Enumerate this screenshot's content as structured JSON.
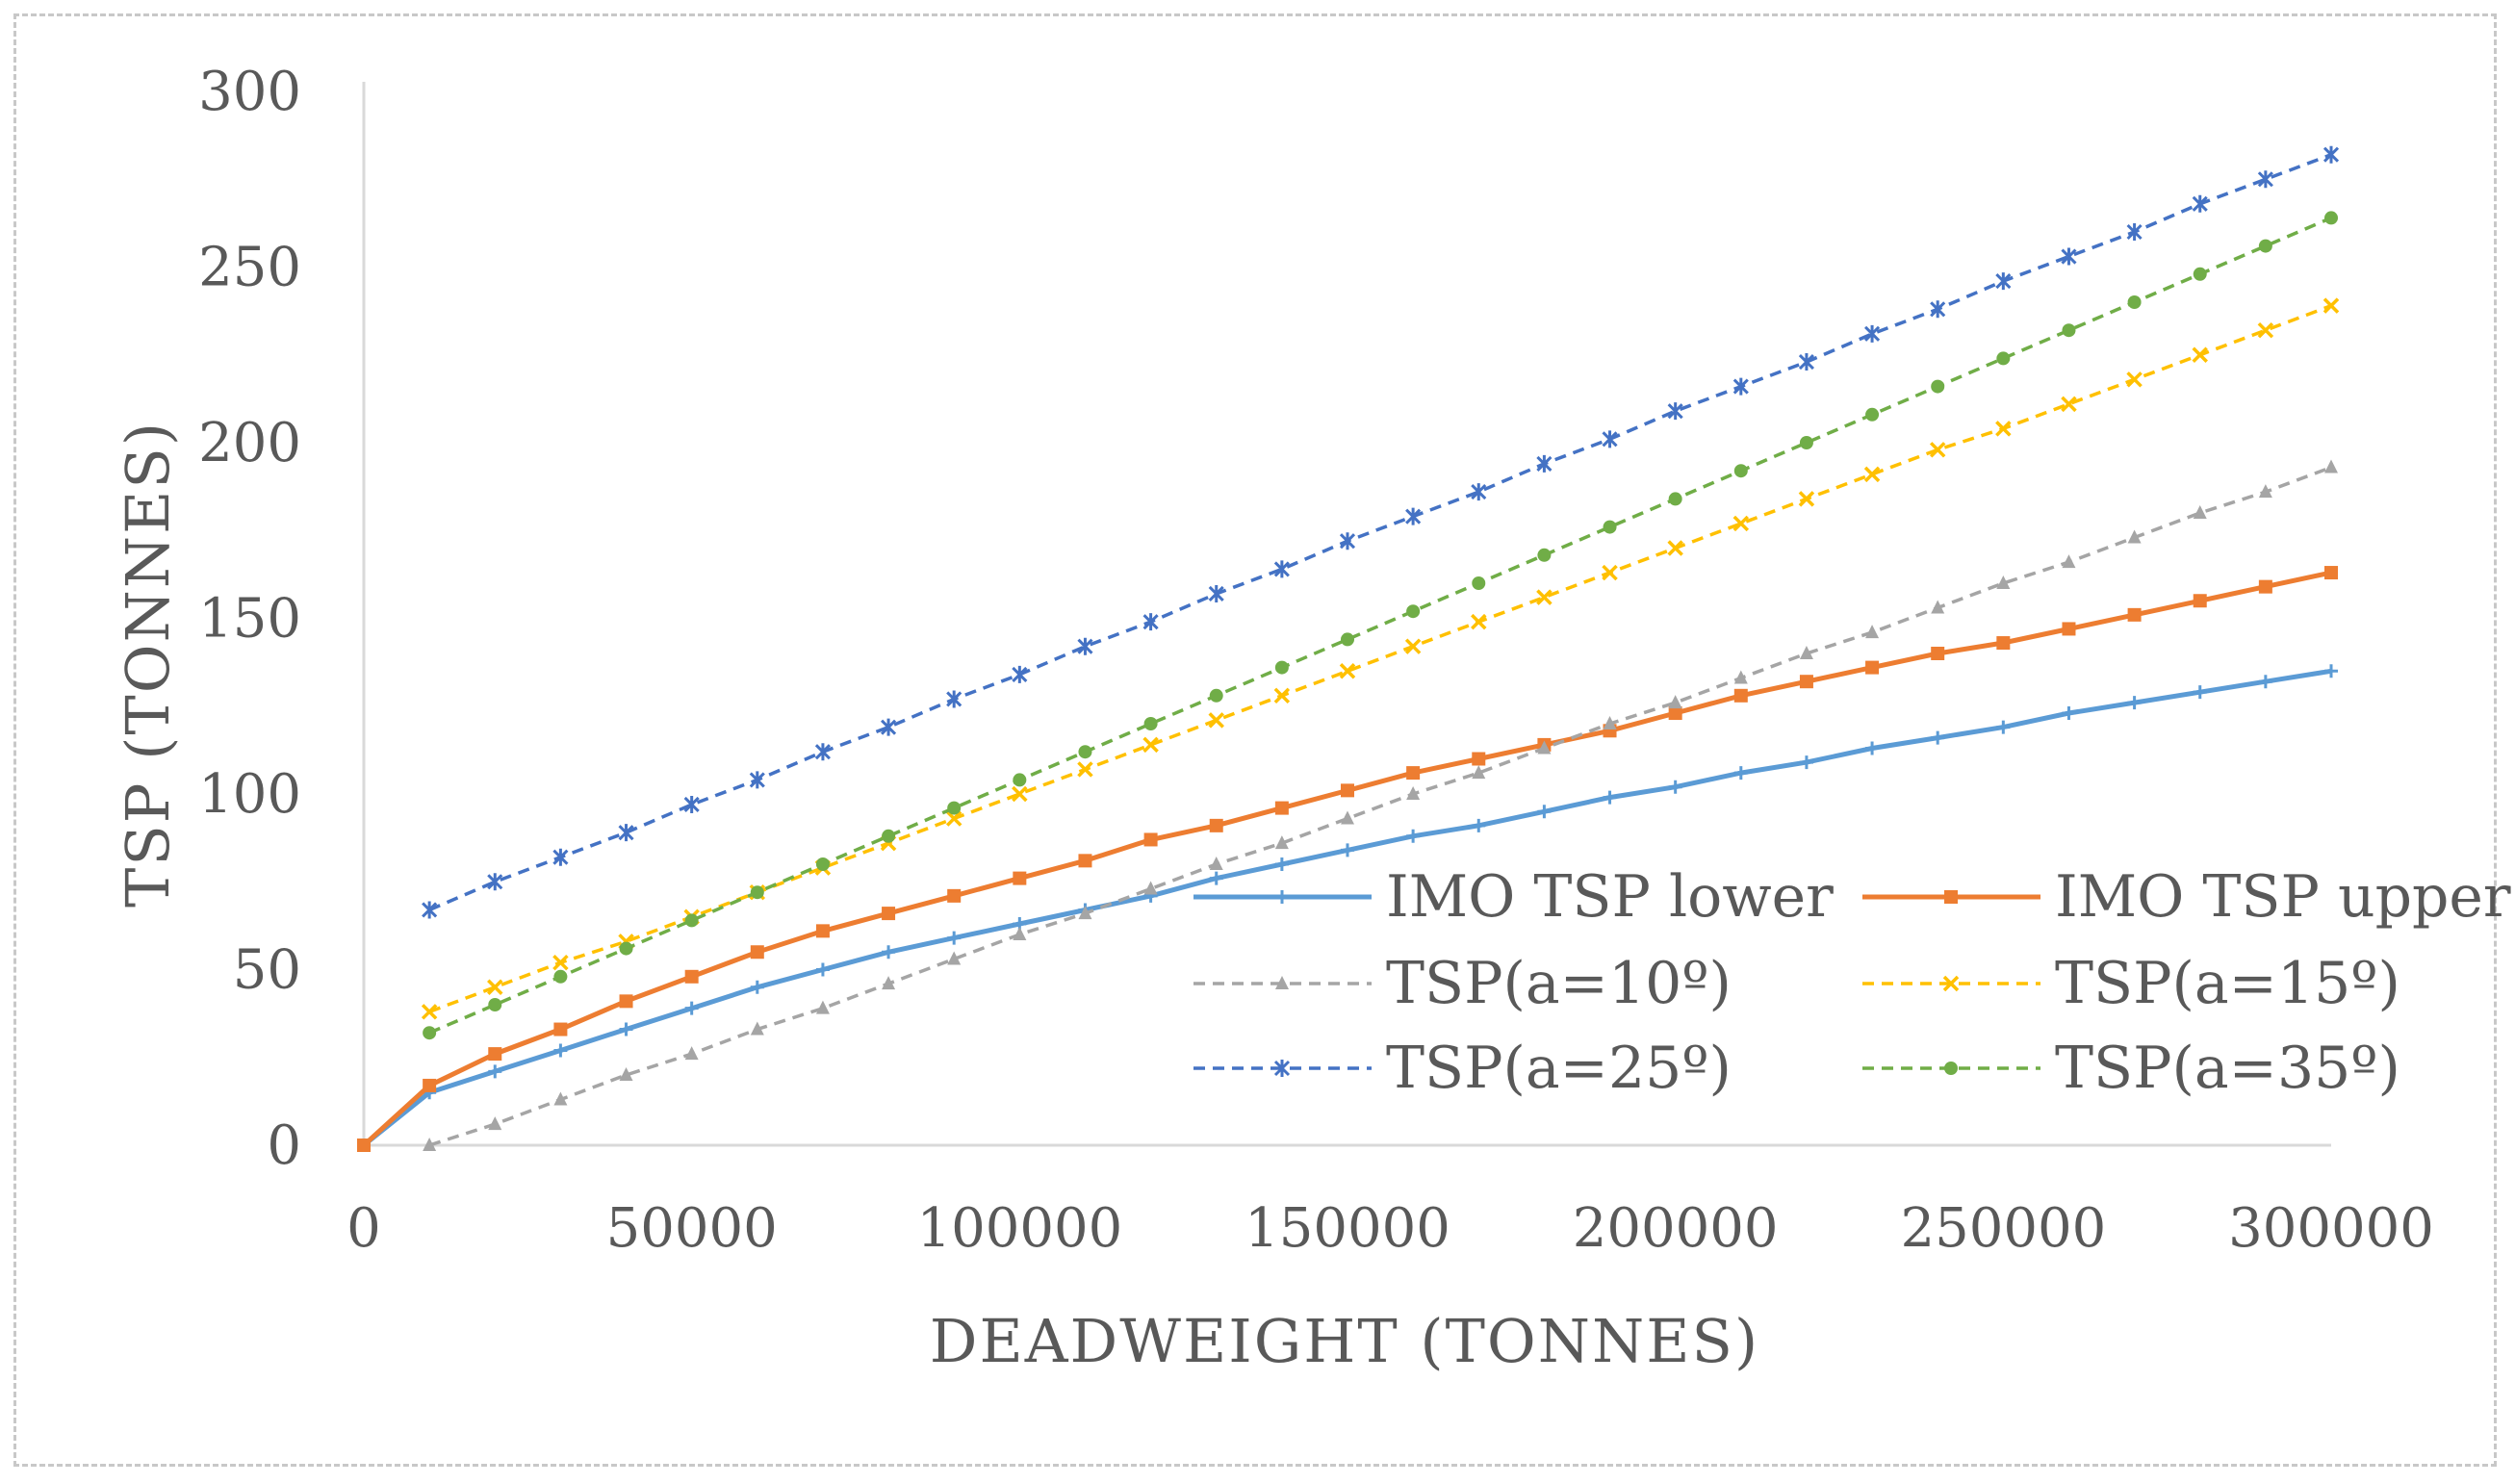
{
  "chart_data": {
    "type": "line",
    "title": "",
    "xlabel": "DEADWEIGHT (TONNES)",
    "ylabel": "TSP (TONNES)",
    "xlim": [
      0,
      300000
    ],
    "ylim": [
      0,
      300
    ],
    "xticks": [
      0,
      50000,
      100000,
      150000,
      200000,
      250000,
      300000
    ],
    "yticks": [
      0,
      50,
      100,
      150,
      200,
      250,
      300
    ],
    "grid": false,
    "legend_position": "center-right",
    "series": [
      {
        "name": "IMO TSP lower",
        "color": "#5B9BD5",
        "style": "solid",
        "marker": "plus",
        "x": [
          0,
          10000,
          20000,
          30000,
          40000,
          50000,
          60000,
          70000,
          80000,
          90000,
          100000,
          110000,
          120000,
          130000,
          140000,
          150000,
          160000,
          170000,
          180000,
          190000,
          200000,
          210000,
          220000,
          230000,
          240000,
          250000,
          260000,
          270000,
          280000,
          290000,
          300000
        ],
        "y": [
          0,
          15,
          21,
          27,
          33,
          39,
          45,
          50,
          55,
          59,
          63,
          67,
          71,
          76,
          80,
          84,
          88,
          91,
          95,
          99,
          102,
          106,
          109,
          113,
          116,
          119,
          123,
          126,
          129,
          132,
          135
        ]
      },
      {
        "name": "IMO TSP upper",
        "color": "#ED7D31",
        "style": "solid",
        "marker": "square",
        "x": [
          0,
          10000,
          20000,
          30000,
          40000,
          50000,
          60000,
          70000,
          80000,
          90000,
          100000,
          110000,
          120000,
          130000,
          140000,
          150000,
          160000,
          170000,
          180000,
          190000,
          200000,
          210000,
          220000,
          230000,
          240000,
          250000,
          260000,
          270000,
          280000,
          290000,
          300000
        ],
        "y": [
          0,
          17,
          26,
          33,
          41,
          48,
          55,
          61,
          66,
          71,
          76,
          81,
          87,
          91,
          96,
          101,
          106,
          110,
          114,
          118,
          123,
          128,
          132,
          136,
          140,
          143,
          147,
          151,
          155,
          159,
          163
        ]
      },
      {
        "name": "TSP(a=10º)",
        "color": "#A5A5A5",
        "style": "dashed",
        "marker": "triangle",
        "x": [
          10000,
          20000,
          30000,
          40000,
          50000,
          60000,
          70000,
          80000,
          90000,
          100000,
          110000,
          120000,
          130000,
          140000,
          150000,
          160000,
          170000,
          180000,
          190000,
          200000,
          210000,
          220000,
          230000,
          240000,
          250000,
          260000,
          270000,
          280000,
          290000,
          300000
        ],
        "y": [
          0,
          6,
          13,
          20,
          26,
          33,
          39,
          46,
          53,
          60,
          66,
          73,
          80,
          86,
          93,
          100,
          106,
          113,
          120,
          126,
          133,
          140,
          146,
          153,
          160,
          166,
          173,
          180,
          186,
          193
        ]
      },
      {
        "name": "TSP(a=15º)",
        "color": "#FFC000",
        "style": "dashed",
        "marker": "cross",
        "x": [
          10000,
          20000,
          30000,
          40000,
          50000,
          60000,
          70000,
          80000,
          90000,
          100000,
          110000,
          120000,
          130000,
          140000,
          150000,
          160000,
          170000,
          180000,
          190000,
          200000,
          210000,
          220000,
          230000,
          240000,
          250000,
          260000,
          270000,
          280000,
          290000,
          300000
        ],
        "y": [
          38,
          45,
          52,
          58,
          65,
          72,
          79,
          86,
          93,
          100,
          107,
          114,
          121,
          128,
          135,
          142,
          149,
          156,
          163,
          170,
          177,
          184,
          191,
          198,
          204,
          211,
          218,
          225,
          232,
          239
        ]
      },
      {
        "name": "TSP(a=25º)",
        "color": "#4472C4",
        "style": "dashed",
        "marker": "star",
        "x": [
          10000,
          20000,
          30000,
          40000,
          50000,
          60000,
          70000,
          80000,
          90000,
          100000,
          110000,
          120000,
          130000,
          140000,
          150000,
          160000,
          170000,
          180000,
          190000,
          200000,
          210000,
          220000,
          230000,
          240000,
          250000,
          260000,
          270000,
          280000,
          290000,
          300000
        ],
        "y": [
          67,
          75,
          82,
          89,
          97,
          104,
          112,
          119,
          127,
          134,
          142,
          149,
          157,
          164,
          172,
          179,
          186,
          194,
          201,
          209,
          216,
          223,
          231,
          238,
          246,
          253,
          260,
          268,
          275,
          282
        ]
      },
      {
        "name": "TSP(a=35º)",
        "color": "#70AD47",
        "style": "dashed",
        "marker": "dot",
        "x": [
          10000,
          20000,
          30000,
          40000,
          50000,
          60000,
          70000,
          80000,
          90000,
          100000,
          110000,
          120000,
          130000,
          140000,
          150000,
          160000,
          170000,
          180000,
          190000,
          200000,
          210000,
          220000,
          230000,
          240000,
          250000,
          260000,
          270000,
          280000,
          290000,
          300000
        ],
        "y": [
          32,
          40,
          48,
          56,
          64,
          72,
          80,
          88,
          96,
          104,
          112,
          120,
          128,
          136,
          144,
          152,
          160,
          168,
          176,
          184,
          192,
          200,
          208,
          216,
          224,
          232,
          240,
          248,
          256,
          264
        ]
      }
    ]
  }
}
